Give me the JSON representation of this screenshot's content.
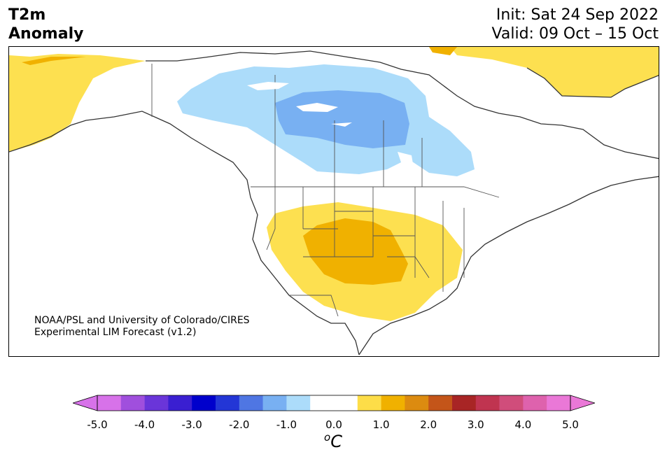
{
  "header": {
    "title_line1": "T2m",
    "title_line2": "Anomaly",
    "init": "Init: Sat 24 Sep 2022",
    "valid": "Valid: 09 Oct – 15 Oct"
  },
  "credit": {
    "line1": "NOAA/PSL and University of Colorado/CIRES",
    "line2": "Experimental LIM Forecast (v1.2)"
  },
  "colorbar": {
    "ticks": [
      "-5.0",
      "-4.0",
      "-3.0",
      "-2.0",
      "-1.0",
      "0.0",
      "1.0",
      "2.0",
      "3.0",
      "4.0",
      "5.0"
    ],
    "unit_sup": "o",
    "unit": "C",
    "colors": [
      "#d772e9",
      "#a04fdd",
      "#6a35d9",
      "#3a1fd1",
      "#0000cc",
      "#2336d6",
      "#4f76e3",
      "#78b0f2",
      "#acdcfa",
      "#ffffff",
      "#ffffff",
      "#fddd48",
      "#f0b100",
      "#dc8b10",
      "#c45519",
      "#a82525",
      "#c03450",
      "#d04d7b",
      "#de62ad",
      "#ea78d7"
    ],
    "under_color": "#d772e9",
    "over_color": "#ea78d7"
  },
  "map": {
    "anomaly_colors": {
      "cool_light": "#acdcfa",
      "cool_mid": "#78b0f2",
      "warm_light": "#fde050",
      "warm_mid": "#f0b100"
    }
  }
}
